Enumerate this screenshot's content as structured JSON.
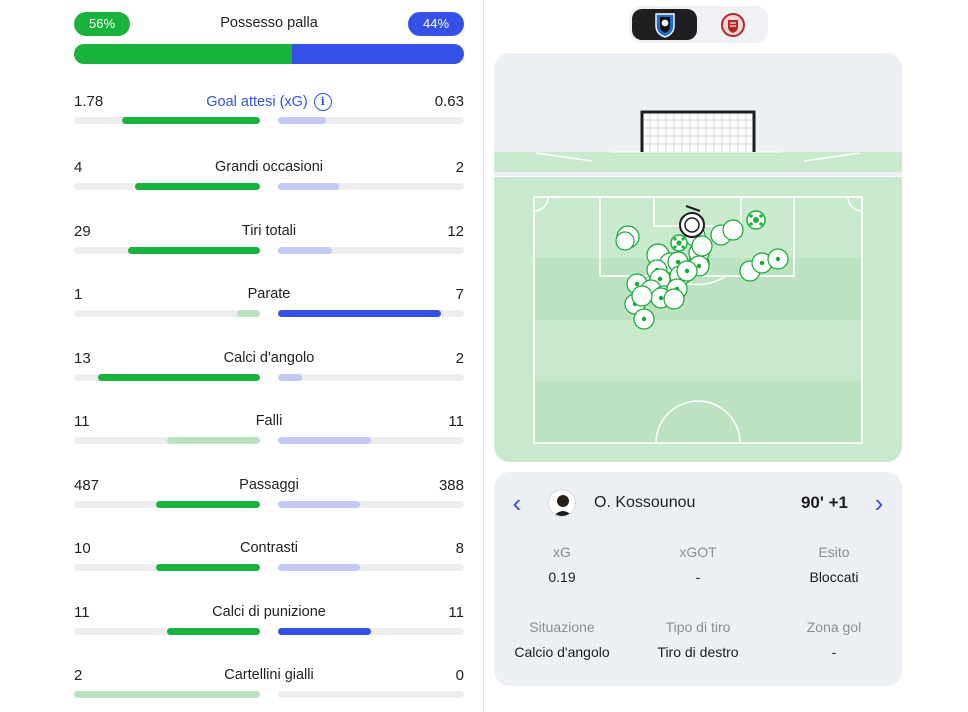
{
  "possession": {
    "label": "Possesso palla",
    "home_label": "56%",
    "away_label": "44%",
    "home_pct": 56,
    "away_pct": 44
  },
  "stats": [
    {
      "label": "Goal attesi (xG)",
      "home": "1.78",
      "away": "0.63",
      "home_fill": 0.74,
      "away_fill": 0.26,
      "home_color": "#17b33c",
      "away_color": "#c2c9f5",
      "link": true,
      "info_icon": "info-icon"
    },
    {
      "label": "Grandi occasioni",
      "home": "4",
      "away": "2",
      "home_fill": 0.67,
      "away_fill": 0.33,
      "home_color": "#17b33c",
      "away_color": "#c2c9f5"
    },
    {
      "label": "Tiri totali",
      "home": "29",
      "away": "12",
      "home_fill": 0.71,
      "away_fill": 0.29,
      "home_color": "#17b33c",
      "away_color": "#c2c9f5"
    },
    {
      "label": "Parate",
      "home": "1",
      "away": "7",
      "home_fill": 0.125,
      "away_fill": 0.875,
      "home_color": "#b9e2c1",
      "away_color": "#3450e6"
    },
    {
      "label": "Calci d'angolo",
      "home": "13",
      "away": "2",
      "home_fill": 0.87,
      "away_fill": 0.13,
      "home_color": "#17b33c",
      "away_color": "#c2c9f5"
    },
    {
      "label": "Falli",
      "home": "11",
      "away": "11",
      "home_fill": 0.5,
      "away_fill": 0.5,
      "home_color": "#b9e2c1",
      "away_color": "#c2c9f5"
    },
    {
      "label": "Passaggi",
      "home": "487",
      "away": "388",
      "home_fill": 0.56,
      "away_fill": 0.44,
      "home_color": "#17b33c",
      "away_color": "#c2c9f5"
    },
    {
      "label": "Contrasti",
      "home": "10",
      "away": "8",
      "home_fill": 0.56,
      "away_fill": 0.44,
      "home_color": "#17b33c",
      "away_color": "#c2c9f5"
    },
    {
      "label": "Calci di punizione",
      "home": "11",
      "away": "11",
      "home_fill": 0.5,
      "away_fill": 0.5,
      "home_color": "#17b33c",
      "away_color": "#3450e6"
    },
    {
      "label": "Cartellini gialli",
      "home": "2",
      "away": "0",
      "home_fill": 1.0,
      "away_fill": 0.0,
      "home_color": "#b9e2c1",
      "away_color": "#c2c9f5"
    }
  ],
  "team_switch": {
    "active_team_icon": "atalanta-crest-icon",
    "other_team_icon": "cremonese-crest-icon"
  },
  "shot_map": {
    "selected_shot_icon": "selected-shot-icon",
    "goal_icon": "soccer-ball-icon"
  },
  "shot_detail": {
    "player": "O. Kossounou",
    "minute": "90' +1",
    "avatar_icon": "player-avatar-icon",
    "prev_icon": "chevron-left-icon",
    "next_icon": "chevron-right-icon",
    "fields": [
      {
        "key": "xG",
        "value": "0.19"
      },
      {
        "key": "xGOT",
        "value": "-"
      },
      {
        "key": "Esito",
        "value": "Bloccati"
      },
      {
        "key": "Situazione",
        "value": "Calcio d'angolo"
      },
      {
        "key": "Tipo di tiro",
        "value": "Tiro di destro"
      },
      {
        "key": "Zona gol",
        "value": "-"
      }
    ]
  }
}
